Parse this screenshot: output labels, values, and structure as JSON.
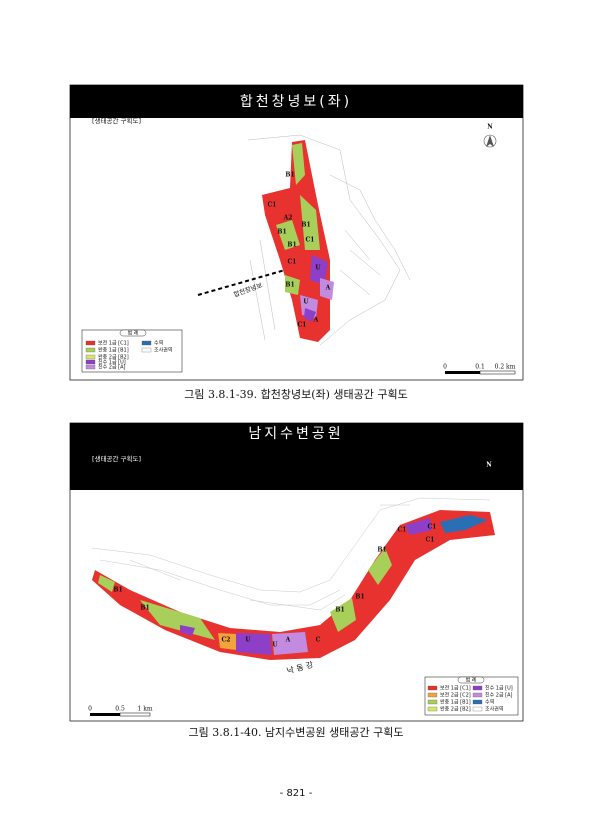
{
  "figures": [
    {
      "header": "합천창녕보(좌)",
      "subtitle": "[생태공간 구획도]",
      "north": "N",
      "legend_title": "범 례",
      "legend": [
        {
          "label": "보전 1급 [C1]",
          "color": "#e8322f"
        },
        {
          "label": "수역",
          "color": "#2a6fb5"
        },
        {
          "label": "완충 1급 [B1]",
          "color": "#a8cf5a"
        },
        {
          "label": "조사권역",
          "color": "#ffffff"
        },
        {
          "label": "완충 2급 [B2]",
          "color": "#d7e66a"
        },
        {
          "label": "친수 1급 [U]",
          "color": "#8e3fc8"
        },
        {
          "label": "친수 2급 [A]",
          "color": "#c28be0"
        }
      ],
      "scale": [
        "0",
        "0.1",
        "0.2 km"
      ],
      "map_labels": [
        "B1",
        "C1",
        "A2",
        "B1",
        "B1",
        "C1",
        "B1",
        "C1",
        "U",
        "B1",
        "A",
        "U",
        "C1",
        "A",
        "합천창녕보"
      ],
      "caption": "그림 3.8.1-39. 합천창녕보(좌) 생태공간 구획도"
    },
    {
      "header": "남지수변공원",
      "subtitle": "[생태공간 구획도]",
      "north": "N",
      "legend_title": "범 례",
      "legend": [
        {
          "label": "보전 1급 [C1]",
          "color": "#e8322f"
        },
        {
          "label": "친수 1급 [U]",
          "color": "#8e3fc8"
        },
        {
          "label": "보전 2급 [C2]",
          "color": "#f2a33a"
        },
        {
          "label": "친수 2급 [A]",
          "color": "#c28be0"
        },
        {
          "label": "완충 1급 [B1]",
          "color": "#a8cf5a"
        },
        {
          "label": "수역",
          "color": "#2a6fb5"
        },
        {
          "label": "완충 2급 [B2]",
          "color": "#d7e66a"
        },
        {
          "label": "조사권역",
          "color": "#ffffff"
        }
      ],
      "scale": [
        "0",
        "0.5",
        "1 km"
      ],
      "map_labels": [
        "C1",
        "C1",
        "C1",
        "B1",
        "B1",
        "B1",
        "B1",
        "B1",
        "C2",
        "U",
        "U",
        "A",
        "C",
        "낙 동 강"
      ],
      "caption": "그림 3.8.1-40. 남지수변공원 생태공간 구획도"
    }
  ],
  "page_number": "- 821 -"
}
